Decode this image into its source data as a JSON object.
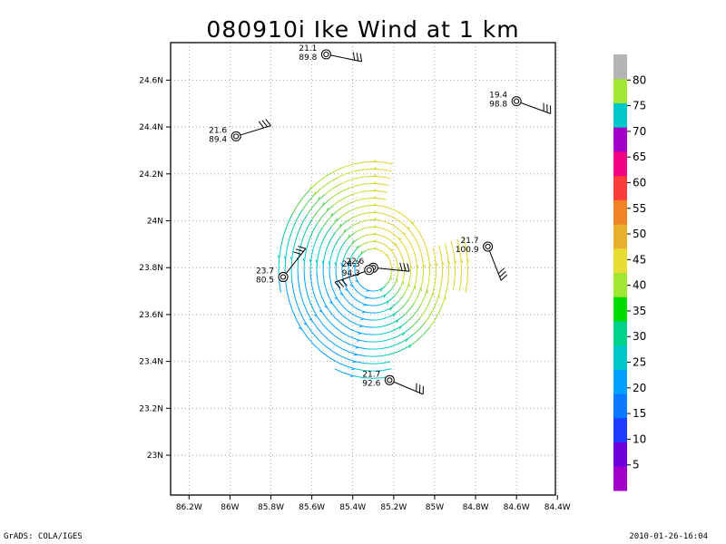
{
  "title": "080910i Ike Wind at 1 km",
  "footer": {
    "left": "GrADS: COLA/IGES",
    "right": "2010-01-26-16:04"
  },
  "chart_data": {
    "type": "scatter",
    "title": "080910i Ike Wind at 1 km",
    "xlabel": "",
    "ylabel": "",
    "xlim": [
      -86.29,
      -84.41
    ],
    "ylim": [
      22.83,
      24.76
    ],
    "grid": true,
    "x_ticks": [
      {
        "value": -86.2,
        "label": "86.2W"
      },
      {
        "value": -86.0,
        "label": "86W"
      },
      {
        "value": -85.8,
        "label": "85.8W"
      },
      {
        "value": -85.6,
        "label": "85.6W"
      },
      {
        "value": -85.4,
        "label": "85.4W"
      },
      {
        "value": -85.2,
        "label": "85.2W"
      },
      {
        "value": -85.0,
        "label": "85W"
      },
      {
        "value": -84.8,
        "label": "84.8W"
      },
      {
        "value": -84.6,
        "label": "84.6W"
      },
      {
        "value": -84.4,
        "label": "84.4W"
      }
    ],
    "y_ticks": [
      {
        "value": 23.0,
        "label": "23N"
      },
      {
        "value": 23.2,
        "label": "23.2N"
      },
      {
        "value": 23.4,
        "label": "23.4N"
      },
      {
        "value": 23.6,
        "label": "23.6N"
      },
      {
        "value": 23.8,
        "label": "23.8N"
      },
      {
        "value": 24.0,
        "label": "24N"
      },
      {
        "value": 24.2,
        "label": "24.2N"
      },
      {
        "value": 24.4,
        "label": "24.4N"
      },
      {
        "value": 24.6,
        "label": "24.6N"
      }
    ],
    "storm_center": {
      "lon": -85.3,
      "lat": 23.79
    },
    "stations": [
      {
        "lon": -85.53,
        "lat": 24.71,
        "temp": "21.1",
        "value": "89.8"
      },
      {
        "lon": -85.97,
        "lat": 24.36,
        "temp": "21.6",
        "value": "89.4"
      },
      {
        "lon": -84.6,
        "lat": 24.51,
        "temp": "19.4",
        "value": "98.8"
      },
      {
        "lon": -84.74,
        "lat": 23.89,
        "temp": "21.7",
        "value": "100.9"
      },
      {
        "lon": -85.74,
        "lat": 23.76,
        "temp": "23.7",
        "value": "80.5"
      },
      {
        "lon": -85.3,
        "lat": 23.8,
        "temp": "22.6",
        "value": ""
      },
      {
        "lon": -85.32,
        "lat": 23.79,
        "temp": "24.3",
        "value": "94.3"
      },
      {
        "lon": -85.22,
        "lat": 23.32,
        "temp": "21.7",
        "value": "92.6"
      }
    ],
    "colorbar": {
      "labels": [
        "5",
        "10",
        "15",
        "20",
        "25",
        "30",
        "35",
        "40",
        "45",
        "50",
        "55",
        "60",
        "65",
        "70",
        "75",
        "80"
      ],
      "colors": [
        "#a000c8",
        "#6e00dc",
        "#1e3cff",
        "#0a78ff",
        "#00a0ff",
        "#00c8c8",
        "#00d28c",
        "#00dc00",
        "#a0e632",
        "#e6dc32",
        "#e6af2d",
        "#f08228",
        "#fa3c3c",
        "#f00082",
        "#a000c8",
        "#00c8c8",
        "#a0e632",
        "#b4b4b4"
      ]
    },
    "wind_field": {
      "rings": 13,
      "inner_radius_deg": 0.09,
      "ring_spacing_deg": 0.031,
      "speed_range": [
        24,
        38
      ],
      "gap_sectors": [
        {
          "from_deg": 20,
          "to_deg": 75,
          "ring_from": 7
        },
        {
          "from_deg": 285,
          "to_deg": 345,
          "ring_from": 10
        },
        {
          "from_deg": 195,
          "to_deg": 240,
          "ring_from": 12
        }
      ]
    }
  }
}
